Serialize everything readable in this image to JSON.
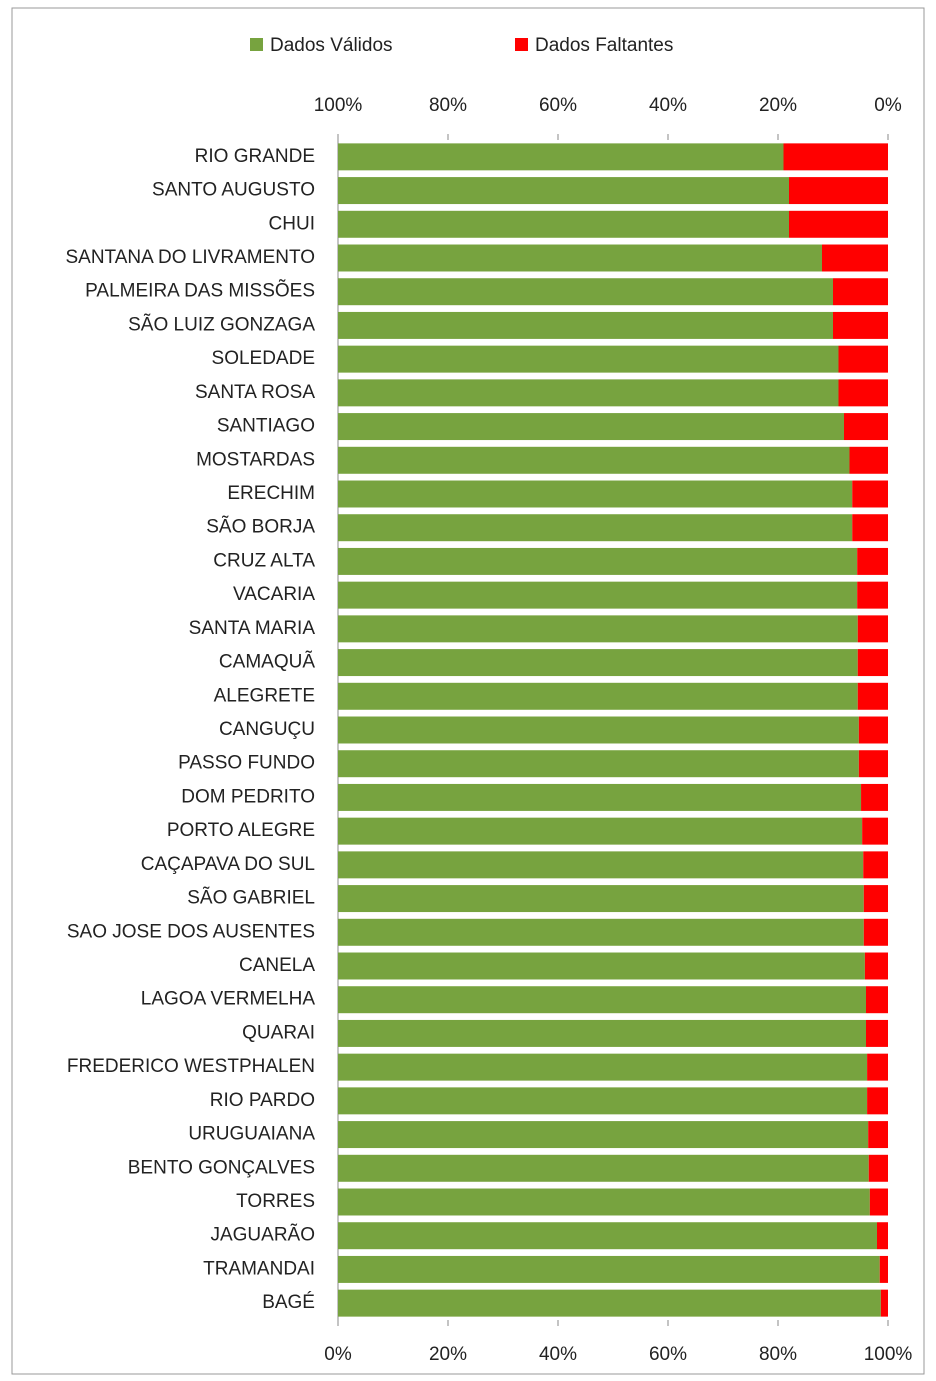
{
  "chart_data": {
    "type": "stacked_bar_horizontal",
    "categories": [
      "RIO GRANDE",
      "SANTO AUGUSTO",
      "CHUI",
      "SANTANA DO LIVRAMENTO",
      "PALMEIRA DAS MISSÕES",
      "SÃO LUIZ GONZAGA",
      "SOLEDADE",
      "SANTA ROSA",
      "SANTIAGO",
      "MOSTARDAS",
      "ERECHIM",
      "SÃO BORJA",
      "CRUZ ALTA",
      "VACARIA",
      "SANTA MARIA",
      "CAMAQUÃ",
      "ALEGRETE",
      "CANGUÇU",
      "PASSO FUNDO",
      "DOM PEDRITO",
      "PORTO ALEGRE",
      "CAÇAPAVA DO SUL",
      "SÃO GABRIEL",
      "SAO JOSE DOS AUSENTES",
      "CANELA",
      "LAGOA VERMELHA",
      "QUARAI",
      "FREDERICO WESTPHALEN",
      "RIO PARDO",
      "URUGUAIANA",
      "BENTO GONÇALVES",
      "TORRES",
      "JAGUARÃO",
      "TRAMANDAI",
      "BAGÉ"
    ],
    "series": [
      {
        "name": "Dados Válidos",
        "color": "#77a33f",
        "values": [
          81,
          82,
          82,
          88,
          90,
          90,
          91,
          91,
          92,
          93,
          93.5,
          93.5,
          94.4,
          94.4,
          94.5,
          94.5,
          94.5,
          94.7,
          94.7,
          95.1,
          95.3,
          95.5,
          95.6,
          95.6,
          95.8,
          96,
          96,
          96.2,
          96.2,
          96.4,
          96.5,
          96.7,
          98,
          98.5,
          98.7
        ]
      },
      {
        "name": "Dados Faltantes",
        "color": "#ff0000",
        "values": [
          19,
          18,
          18,
          12,
          10,
          10,
          9,
          9,
          8,
          7,
          6.5,
          6.5,
          5.6,
          5.6,
          5.5,
          5.5,
          5.5,
          5.3,
          5.3,
          4.9,
          4.7,
          4.5,
          4.4,
          4.4,
          4.2,
          4,
          4,
          3.8,
          3.8,
          3.6,
          3.5,
          3.3,
          2,
          1.5,
          1.3
        ]
      }
    ],
    "xlim": [
      0,
      100
    ],
    "xticks": [
      {
        "value": 0,
        "label": "0%"
      },
      {
        "value": 20,
        "label": "20%"
      },
      {
        "value": 40,
        "label": "40%"
      },
      {
        "value": 60,
        "label": "60%"
      },
      {
        "value": 80,
        "label": "80%"
      },
      {
        "value": 100,
        "label": "100%"
      }
    ],
    "x2lim": [
      100,
      0
    ],
    "x2ticks": [
      {
        "value": 100,
        "label": "100%"
      },
      {
        "value": 80,
        "label": "80%"
      },
      {
        "value": 60,
        "label": "60%"
      },
      {
        "value": 40,
        "label": "40%"
      },
      {
        "value": 20,
        "label": "20%"
      },
      {
        "value": 0,
        "label": "0%"
      }
    ],
    "legend": "top"
  }
}
